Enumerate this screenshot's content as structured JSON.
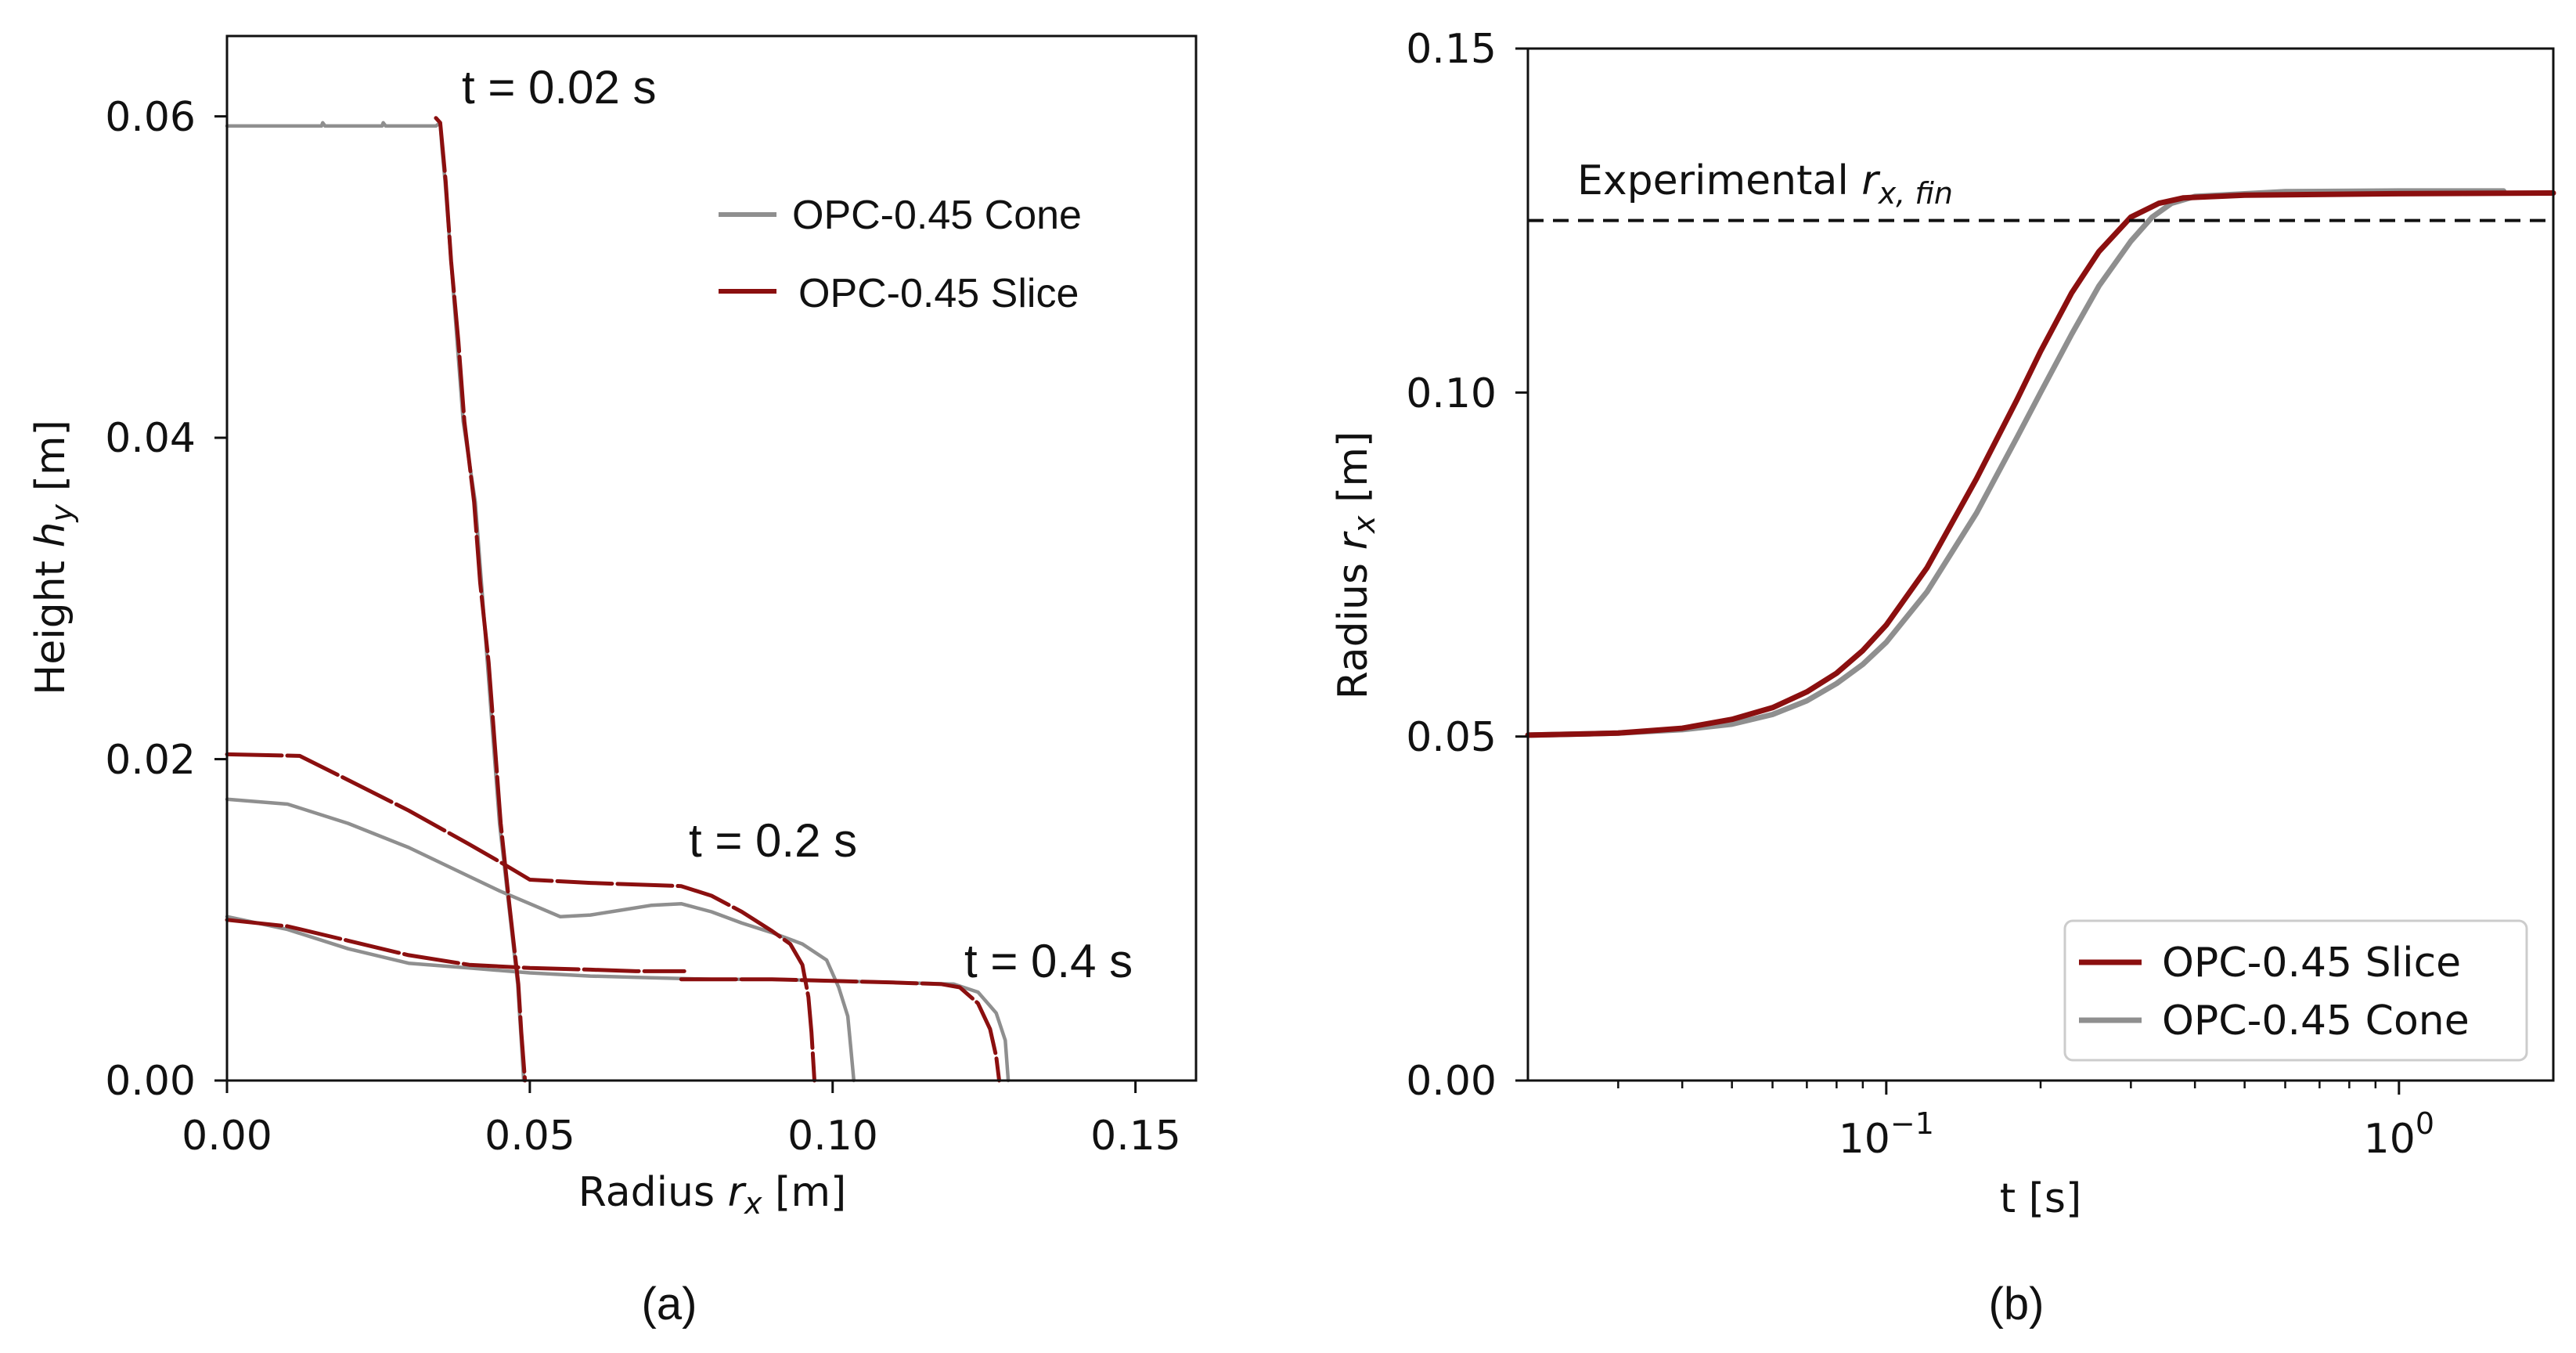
{
  "colors": {
    "slice": "#8b0f0f",
    "cone": "#8f8f8f",
    "axis": "#111111",
    "dashed": "#111111"
  },
  "chart_data": [
    {
      "id": "a",
      "type": "line",
      "panel_label": "(a)",
      "xlabel": "Radius r_x [m]",
      "xlabel_parts": {
        "pre": "Radius ",
        "var": "r",
        "sub": "x",
        "post": " [m]"
      },
      "ylabel": "Height h_y [m]",
      "ylabel_parts": {
        "pre": "Height ",
        "var": "h",
        "sub": "y",
        "post": " [m]"
      },
      "xlim": [
        0,
        0.16
      ],
      "ylim": [
        0,
        0.065
      ],
      "xticks": [
        {
          "value": 0.0,
          "label": "0.00"
        },
        {
          "value": 0.05,
          "label": "0.05"
        },
        {
          "value": 0.1,
          "label": "0.10"
        },
        {
          "value": 0.15,
          "label": "0.15"
        }
      ],
      "yticks": [
        {
          "value": 0.0,
          "label": "0.00"
        },
        {
          "value": 0.02,
          "label": "0.02"
        },
        {
          "value": 0.04,
          "label": "0.04"
        },
        {
          "value": 0.06,
          "label": "0.06"
        }
      ],
      "legend": {
        "placement": "upper-right",
        "entries": [
          {
            "series": "cone",
            "label": "OPC-0.45 Cone"
          },
          {
            "series": "slice",
            "label": "OPC-0.45 Slice"
          }
        ]
      },
      "annotations": [
        {
          "text": "t  = 0.02 s",
          "x": 0.0385,
          "y": 0.0615
        },
        {
          "text": "t  = 0.2 s",
          "x": 0.0765,
          "y": 0.0147
        },
        {
          "text": "t  = 0.4 s",
          "x": 0.121,
          "y": 0.0072
        }
      ],
      "series": [
        {
          "name": "OPC-0.45 Cone",
          "key": "cone",
          "time": "0.02 s",
          "points": [
            [
              0,
              0.0594
            ],
            [
              0.0156,
              0.0594
            ],
            [
              0.0158,
              0.0596
            ],
            [
              0.0162,
              0.0594
            ],
            [
              0.0256,
              0.0594
            ],
            [
              0.0258,
              0.0596
            ],
            [
              0.0262,
              0.0594
            ],
            [
              0.0345,
              0.0594
            ],
            [
              0.0352,
              0.0596
            ],
            [
              0.0355,
              0.058
            ],
            [
              0.036,
              0.056
            ],
            [
              0.037,
              0.051
            ],
            [
              0.038,
              0.046
            ],
            [
              0.039,
              0.041
            ],
            [
              0.041,
              0.036
            ],
            [
              0.042,
              0.031
            ],
            [
              0.043,
              0.026
            ],
            [
              0.044,
              0.021
            ],
            [
              0.045,
              0.016
            ],
            [
              0.0465,
              0.011
            ],
            [
              0.048,
              0.006
            ],
            [
              0.0485,
              0.003
            ],
            [
              0.049,
              0.0
            ]
          ]
        },
        {
          "name": "OPC-0.45 Slice",
          "key": "slice",
          "time": "0.02 s",
          "points": [
            [
              0.0345,
              0.0599
            ],
            [
              0.0352,
              0.0596
            ],
            [
              0.0356,
              0.058
            ],
            [
              0.0361,
              0.056
            ],
            [
              0.037,
              0.051
            ],
            [
              0.0382,
              0.046
            ],
            [
              0.0392,
              0.041
            ],
            [
              0.0408,
              0.036
            ],
            [
              0.0418,
              0.031
            ],
            [
              0.0432,
              0.026
            ],
            [
              0.0442,
              0.021
            ],
            [
              0.0452,
              0.016
            ],
            [
              0.0466,
              0.011
            ],
            [
              0.0481,
              0.006
            ],
            [
              0.0486,
              0.003
            ],
            [
              0.0492,
              0.0
            ]
          ]
        },
        {
          "name": "OPC-0.45 Cone",
          "key": "cone",
          "time": "0.2 s",
          "points": [
            [
              0,
              0.0175
            ],
            [
              0.01,
              0.0172
            ],
            [
              0.02,
              0.016
            ],
            [
              0.03,
              0.0145
            ],
            [
              0.04,
              0.0127
            ],
            [
              0.045,
              0.0118
            ],
            [
              0.05,
              0.011
            ],
            [
              0.055,
              0.0102
            ],
            [
              0.06,
              0.0103
            ],
            [
              0.065,
              0.0106
            ],
            [
              0.07,
              0.0109
            ],
            [
              0.075,
              0.011
            ],
            [
              0.08,
              0.0105
            ],
            [
              0.085,
              0.0098
            ],
            [
              0.09,
              0.0092
            ],
            [
              0.095,
              0.0085
            ],
            [
              0.099,
              0.0075
            ],
            [
              0.101,
              0.0058
            ],
            [
              0.1025,
              0.004
            ],
            [
              0.103,
              0.002
            ],
            [
              0.1035,
              0.0
            ]
          ]
        },
        {
          "name": "OPC-0.45 Slice",
          "key": "slice",
          "time": "0.2 s",
          "points": [
            [
              0,
              0.0203
            ],
            [
              0.012,
              0.0202
            ],
            [
              0.02,
              0.0187
            ],
            [
              0.03,
              0.0168
            ],
            [
              0.04,
              0.0147
            ],
            [
              0.046,
              0.0134
            ],
            [
              0.05,
              0.0125
            ],
            [
              0.06,
              0.0123
            ],
            [
              0.075,
              0.0121
            ],
            [
              0.08,
              0.0115
            ],
            [
              0.085,
              0.0105
            ],
            [
              0.09,
              0.0093
            ],
            [
              0.093,
              0.0085
            ],
            [
              0.095,
              0.0072
            ],
            [
              0.096,
              0.0052
            ],
            [
              0.0965,
              0.003
            ],
            [
              0.097,
              0.0
            ]
          ]
        },
        {
          "name": "OPC-0.45 Cone",
          "key": "cone",
          "time": "0.4 s",
          "points": [
            [
              0,
              0.0102
            ],
            [
              0.01,
              0.0094
            ],
            [
              0.02,
              0.0082
            ],
            [
              0.03,
              0.0073
            ],
            [
              0.04,
              0.007
            ],
            [
              0.05,
              0.0067
            ],
            [
              0.06,
              0.0065
            ],
            [
              0.07,
              0.0064
            ],
            [
              0.08,
              0.0063
            ],
            [
              0.09,
              0.0063
            ],
            [
              0.1,
              0.0062
            ],
            [
              0.11,
              0.0061
            ],
            [
              0.12,
              0.006
            ],
            [
              0.124,
              0.0055
            ],
            [
              0.127,
              0.0042
            ],
            [
              0.1285,
              0.0025
            ],
            [
              0.129,
              0.0
            ]
          ]
        },
        {
          "name": "OPC-0.45 Slice",
          "key": "slice",
          "time": "0.4 s",
          "points": [
            [
              0,
              0.01
            ],
            [
              0.01,
              0.0096
            ],
            [
              0.02,
              0.0087
            ],
            [
              0.03,
              0.0078
            ],
            [
              0.04,
              0.0072
            ],
            [
              0.05,
              0.007
            ],
            [
              0.06,
              0.0069
            ],
            [
              0.0675,
              0.0068
            ],
            [
              0.071,
              0.0068
            ],
            [
              0.074,
              0.0068
            ],
            [
              0.0755,
              0.0068
            ]
          ]
        },
        {
          "name": "OPC-0.45 Slice",
          "key": "slice",
          "time": "0.4 s (front)",
          "points": [
            [
              0.075,
              0.0063
            ],
            [
              0.09,
              0.0063
            ],
            [
              0.1,
              0.0062
            ],
            [
              0.11,
              0.0061
            ],
            [
              0.118,
              0.006
            ],
            [
              0.121,
              0.0058
            ],
            [
              0.124,
              0.0048
            ],
            [
              0.126,
              0.0032
            ],
            [
              0.127,
              0.0015
            ],
            [
              0.1275,
              0.0
            ]
          ]
        }
      ]
    },
    {
      "id": "b",
      "type": "line",
      "panel_label": "(b)",
      "xscale": "log",
      "xlabel": "t [s]",
      "ylabel": "Radius r_x [m]",
      "ylabel_parts": {
        "pre": "Radius ",
        "var": "r",
        "sub": "x",
        "post": " [m]"
      },
      "xlim": [
        0.02,
        2.0
      ],
      "ylim": [
        0,
        0.15
      ],
      "xticks": [
        {
          "value": 0.1,
          "base": "10",
          "exp": "−1"
        },
        {
          "value": 1.0,
          "base": "10",
          "exp": "0"
        }
      ],
      "yticks": [
        {
          "value": 0.0,
          "label": "0.00"
        },
        {
          "value": 0.05,
          "label": "0.05"
        },
        {
          "value": 0.1,
          "label": "0.10"
        },
        {
          "value": 0.15,
          "label": "0.15"
        }
      ],
      "reference_line": {
        "value": 0.125,
        "label_pre": "Experimental ",
        "label_var": "r",
        "label_sub": "x, fin"
      },
      "legend": {
        "placement": "lower-right",
        "entries": [
          {
            "series": "slice",
            "label": "OPC-0.45 Slice"
          },
          {
            "series": "cone",
            "label": "OPC-0.45 Cone"
          }
        ]
      },
      "series": [
        {
          "name": "OPC-0.45 Slice",
          "key": "slice",
          "points": [
            [
              0.02,
              0.0502
            ],
            [
              0.03,
              0.0505
            ],
            [
              0.04,
              0.0512
            ],
            [
              0.05,
              0.0525
            ],
            [
              0.06,
              0.0542
            ],
            [
              0.07,
              0.0565
            ],
            [
              0.08,
              0.0592
            ],
            [
              0.09,
              0.0625
            ],
            [
              0.1,
              0.0662
            ],
            [
              0.12,
              0.0745
            ],
            [
              0.15,
              0.0875
            ],
            [
              0.18,
              0.099
            ],
            [
              0.2,
              0.106
            ],
            [
              0.23,
              0.1145
            ],
            [
              0.26,
              0.1205
            ],
            [
              0.3,
              0.1255
            ],
            [
              0.34,
              0.1275
            ],
            [
              0.38,
              0.1283
            ],
            [
              0.5,
              0.1287
            ],
            [
              1.0,
              0.1289
            ],
            [
              2.0,
              0.129
            ]
          ]
        },
        {
          "name": "OPC-0.45 Cone",
          "key": "cone",
          "points": [
            [
              0.02,
              0.0502
            ],
            [
              0.03,
              0.0505
            ],
            [
              0.04,
              0.051
            ],
            [
              0.05,
              0.0518
            ],
            [
              0.06,
              0.0532
            ],
            [
              0.07,
              0.0552
            ],
            [
              0.08,
              0.0577
            ],
            [
              0.09,
              0.0605
            ],
            [
              0.1,
              0.0637
            ],
            [
              0.12,
              0.071
            ],
            [
              0.15,
              0.0825
            ],
            [
              0.18,
              0.0935
            ],
            [
              0.2,
              0.1
            ],
            [
              0.23,
              0.1085
            ],
            [
              0.26,
              0.1155
            ],
            [
              0.3,
              0.122
            ],
            [
              0.33,
              0.1255
            ],
            [
              0.36,
              0.1275
            ],
            [
              0.4,
              0.1285
            ],
            [
              0.6,
              0.1292
            ],
            [
              1.0,
              0.1293
            ],
            [
              1.6,
              0.1293
            ]
          ]
        }
      ]
    }
  ]
}
